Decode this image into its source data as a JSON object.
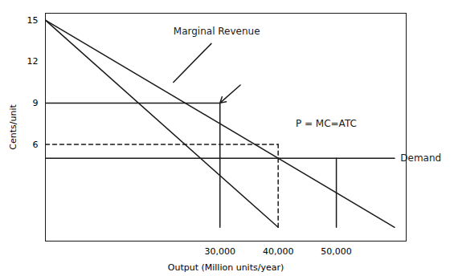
{
  "chart_data": {
    "type": "line",
    "xlabel": "Output (Million units/year)",
    "ylabel": "Cents/unit",
    "xlim": [
      0,
      62000
    ],
    "ylim": [
      -1,
      15.5
    ],
    "yticks": [
      6,
      9,
      12,
      15
    ],
    "xticks": [
      {
        "value": 30000,
        "label": "30,000"
      },
      {
        "value": 40000,
        "label": "40,000"
      },
      {
        "value": 50000,
        "label": "50,000"
      }
    ],
    "grid": false,
    "color": "#1a1a1a",
    "series": [
      {
        "x": [
          0,
          60000
        ],
        "values": [
          15,
          0
        ],
        "line_style": "solid"
      },
      {
        "x": [
          0,
          40000
        ],
        "values": [
          15,
          0
        ],
        "line_style": "solid"
      },
      {
        "x": [
          0,
          60000
        ],
        "values": [
          5,
          5
        ],
        "line_style": "solid"
      },
      {
        "x": [
          0,
          30000
        ],
        "values": [
          9,
          9
        ],
        "line_style": "solid"
      },
      {
        "x": [
          30000,
          30000
        ],
        "values": [
          0,
          9
        ],
        "line_style": "solid"
      },
      {
        "x": [
          0,
          40000
        ],
        "values": [
          6,
          6
        ],
        "line_style": "dashed"
      },
      {
        "x": [
          40000,
          40000
        ],
        "values": [
          0,
          6
        ],
        "line_style": "dashed"
      },
      {
        "x": [
          50000,
          50000
        ],
        "values": [
          0,
          5
        ],
        "line_style": "solid"
      },
      {
        "x": [
          22000,
          28500
        ],
        "values": [
          10.5,
          13.3
        ],
        "line_style": "solid"
      }
    ],
    "arrows": [
      {
        "x1": 33500,
        "y1": 10.3,
        "x2": 30000,
        "y2": 9.0
      }
    ],
    "annotations": [
      {
        "text": "Marginal Revenue",
        "x": 22000,
        "y": 14.2
      },
      {
        "text": "P = MC=ATC",
        "x": 43000,
        "y": 7.5
      },
      {
        "text": "Demand",
        "x": 61000,
        "y": 5
      }
    ]
  }
}
